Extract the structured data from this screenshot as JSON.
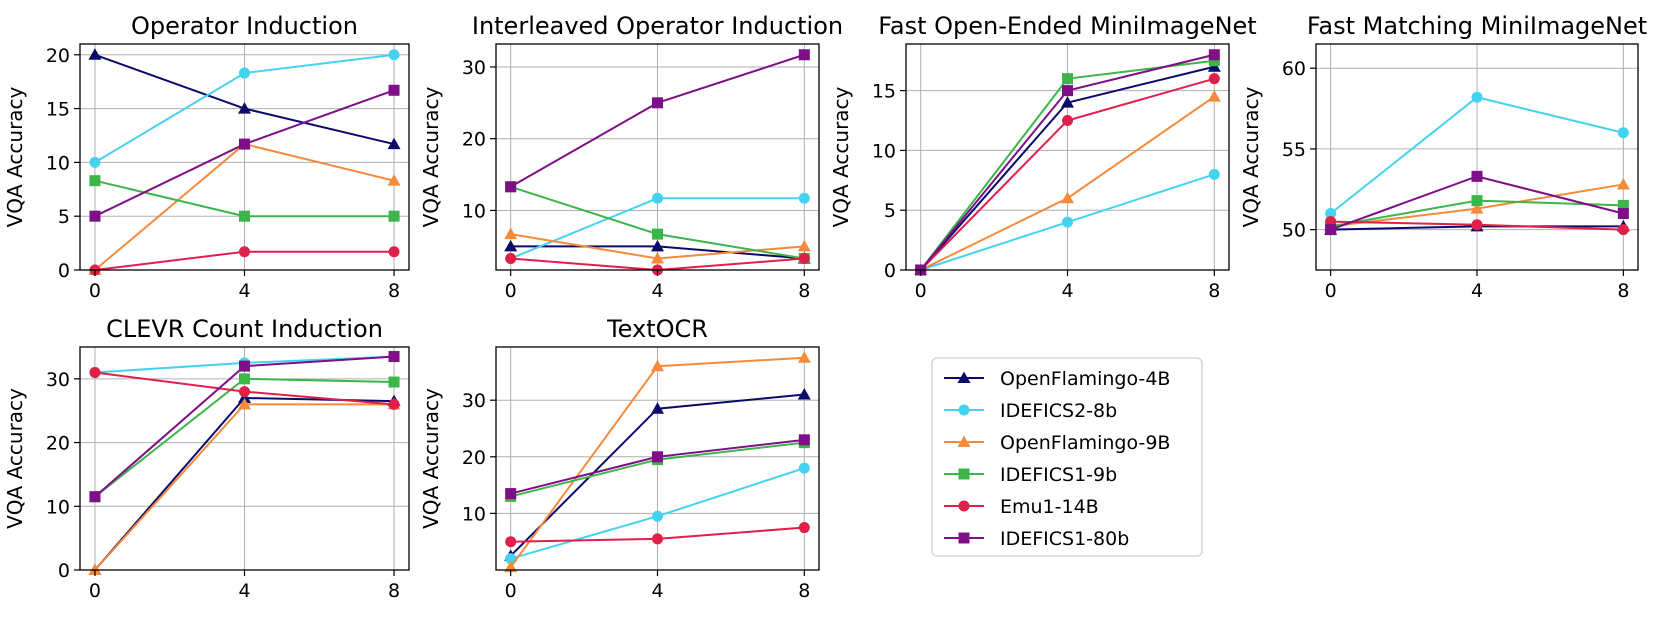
{
  "legend": {
    "position": "lower-center",
    "entries": [
      {
        "name": "OpenFlamingo-4B",
        "color": "#0b0b6b",
        "marker": "triangle"
      },
      {
        "name": "IDEFICS2-8b",
        "color": "#44d3ef",
        "marker": "circle"
      },
      {
        "name": "OpenFlamingo-9B",
        "color": "#f58a3a",
        "marker": "triangle"
      },
      {
        "name": "IDEFICS1-9b",
        "color": "#3cb54a",
        "marker": "square"
      },
      {
        "name": "Emu1-14B",
        "color": "#e0204a",
        "marker": "circle"
      },
      {
        "name": "IDEFICS1-80b",
        "color": "#7e0f86",
        "marker": "square"
      }
    ]
  },
  "chart_data": [
    {
      "type": "line",
      "title": "Operator Induction",
      "ylabel": "VQA Accuracy",
      "xlabel": "",
      "x": [
        0,
        4,
        8
      ],
      "xlim": [
        -0.4,
        8.4
      ],
      "ylim": [
        0,
        21
      ],
      "yticks": [
        0,
        5,
        10,
        15,
        20
      ],
      "grid": true,
      "series": [
        {
          "name": "OpenFlamingo-4B",
          "values": [
            20,
            15,
            11.7
          ]
        },
        {
          "name": "IDEFICS2-8b",
          "values": [
            10,
            18.3,
            20
          ]
        },
        {
          "name": "OpenFlamingo-9B",
          "values": [
            0,
            11.7,
            8.3
          ]
        },
        {
          "name": "IDEFICS1-9b",
          "values": [
            8.3,
            5,
            5
          ]
        },
        {
          "name": "Emu1-14B",
          "values": [
            0,
            1.7,
            1.7
          ]
        },
        {
          "name": "IDEFICS1-80b",
          "values": [
            5,
            11.7,
            16.7
          ]
        }
      ]
    },
    {
      "type": "line",
      "title": "Interleaved Operator Induction",
      "ylabel": "VQA Accuracy",
      "xlabel": "",
      "x": [
        0,
        4,
        8
      ],
      "xlim": [
        -0.4,
        8.4
      ],
      "ylim": [
        1.7,
        33.2
      ],
      "yticks": [
        10,
        20,
        30
      ],
      "grid": true,
      "series": [
        {
          "name": "OpenFlamingo-4B",
          "values": [
            5,
            5,
            3.3
          ]
        },
        {
          "name": "IDEFICS2-8b",
          "values": [
            3.3,
            11.7,
            11.7
          ]
        },
        {
          "name": "OpenFlamingo-9B",
          "values": [
            6.7,
            3.3,
            5
          ]
        },
        {
          "name": "IDEFICS1-9b",
          "values": [
            13.3,
            6.7,
            3.3
          ]
        },
        {
          "name": "Emu1-14B",
          "values": [
            3.3,
            1.7,
            3.3
          ]
        },
        {
          "name": "IDEFICS1-80b",
          "values": [
            13.3,
            25,
            31.7
          ]
        }
      ]
    },
    {
      "type": "line",
      "title": "Fast Open-Ended MiniImageNet",
      "ylabel": "VQA Accuracy",
      "xlabel": "",
      "x": [
        0,
        4,
        8
      ],
      "xlim": [
        -0.4,
        8.4
      ],
      "ylim": [
        0,
        18.9
      ],
      "yticks": [
        0,
        5,
        10,
        15
      ],
      "grid": true,
      "series": [
        {
          "name": "OpenFlamingo-4B",
          "values": [
            0,
            14,
            17
          ]
        },
        {
          "name": "IDEFICS2-8b",
          "values": [
            0,
            4,
            8
          ]
        },
        {
          "name": "OpenFlamingo-9B",
          "values": [
            0,
            6,
            14.5
          ]
        },
        {
          "name": "IDEFICS1-9b",
          "values": [
            0,
            16,
            17.5
          ]
        },
        {
          "name": "Emu1-14B",
          "values": [
            0,
            12.5,
            16
          ]
        },
        {
          "name": "IDEFICS1-80b",
          "values": [
            0,
            15,
            18
          ]
        }
      ]
    },
    {
      "type": "line",
      "title": "Fast Matching MiniImageNet",
      "ylabel": "VQA Accuracy",
      "xlabel": "",
      "x": [
        0,
        4,
        8
      ],
      "xlim": [
        -0.4,
        8.4
      ],
      "ylim": [
        47.5,
        61.5
      ],
      "yticks": [
        50,
        55,
        60
      ],
      "grid": true,
      "series": [
        {
          "name": "OpenFlamingo-4B",
          "values": [
            50,
            50.2,
            50.2
          ]
        },
        {
          "name": "IDEFICS2-8b",
          "values": [
            51,
            58.2,
            56
          ]
        },
        {
          "name": "OpenFlamingo-9B",
          "values": [
            50.2,
            51.3,
            52.8
          ]
        },
        {
          "name": "IDEFICS1-9b",
          "values": [
            50.2,
            51.8,
            51.5
          ]
        },
        {
          "name": "Emu1-14B",
          "values": [
            50.5,
            50.3,
            50
          ]
        },
        {
          "name": "IDEFICS1-80b",
          "values": [
            50,
            53.3,
            51
          ]
        }
      ]
    },
    {
      "type": "line",
      "title": "CLEVR Count Induction",
      "ylabel": "VQA Accuracy",
      "xlabel": "",
      "x": [
        0,
        4,
        8
      ],
      "xlim": [
        -0.4,
        8.4
      ],
      "ylim": [
        0,
        35
      ],
      "yticks": [
        0,
        10,
        20,
        30
      ],
      "grid": true,
      "series": [
        {
          "name": "OpenFlamingo-4B",
          "values": [
            0,
            27,
            26.5
          ]
        },
        {
          "name": "IDEFICS2-8b",
          "values": [
            31,
            32.5,
            33.5
          ]
        },
        {
          "name": "OpenFlamingo-9B",
          "values": [
            0,
            26,
            26
          ]
        },
        {
          "name": "IDEFICS1-9b",
          "values": [
            11.5,
            30,
            29.5
          ]
        },
        {
          "name": "Emu1-14B",
          "values": [
            31,
            28,
            26
          ]
        },
        {
          "name": "IDEFICS1-80b",
          "values": [
            11.5,
            32,
            33.5
          ]
        }
      ]
    },
    {
      "type": "line",
      "title": "TextOCR",
      "ylabel": "VQA Accuracy",
      "xlabel": "",
      "x": [
        0,
        4,
        8
      ],
      "xlim": [
        -0.4,
        8.4
      ],
      "ylim": [
        0,
        39.4
      ],
      "yticks": [
        10,
        20,
        30
      ],
      "grid": true,
      "series": [
        {
          "name": "OpenFlamingo-4B",
          "values": [
            2.5,
            28.5,
            31
          ]
        },
        {
          "name": "IDEFICS2-8b",
          "values": [
            2,
            9.5,
            18
          ]
        },
        {
          "name": "OpenFlamingo-9B",
          "values": [
            0.5,
            36,
            37.5
          ]
        },
        {
          "name": "IDEFICS1-9b",
          "values": [
            13,
            19.5,
            22.5
          ]
        },
        {
          "name": "Emu1-14B",
          "values": [
            5,
            5.5,
            7.5
          ]
        },
        {
          "name": "IDEFICS1-80b",
          "values": [
            13.5,
            20,
            23
          ]
        }
      ]
    }
  ]
}
